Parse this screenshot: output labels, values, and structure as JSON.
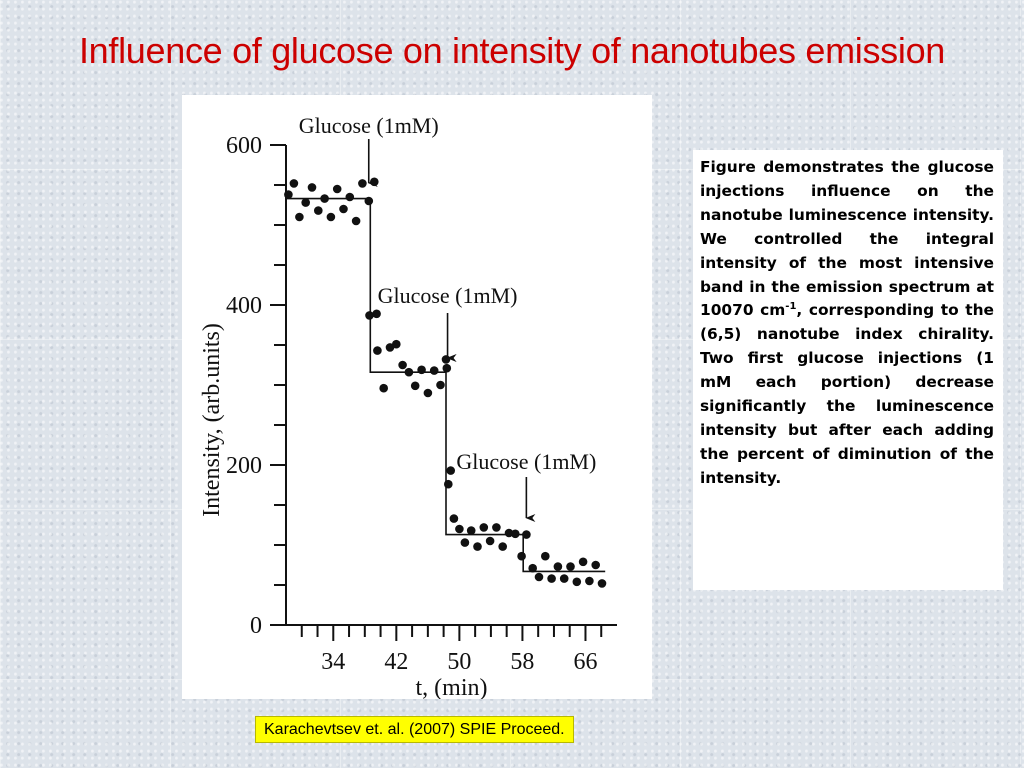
{
  "slide": {
    "title": "Influence of glucose on intensity of nanotubes emission"
  },
  "caption": {
    "before_superscript": "Figure demonstrates the glucose injections influence on the nanotube luminescence intensity. We controlled the integral intensity of the most intensive band in the emission spectrum at 10070 cm",
    "superscript": "-1",
    "after_superscript": ", corresponding to the (6,5) nanotube index chirality. Two first glucose injections (1 mM each portion) decrease significantly the luminescence intensity but after each adding the percent of diminution of the intensity."
  },
  "source": {
    "label": "Karachevtsev et. al. (2007) SPIE Proceed."
  },
  "colors": {
    "title": "#cc0000",
    "source_highlight": "#ffff00",
    "plot_ink": "#111111"
  },
  "chart_data": {
    "type": "scatter",
    "xlabel": "t, (min)",
    "ylabel": "Intensity, (arb.units)",
    "x_ticks": [
      34,
      42,
      50,
      58,
      66
    ],
    "y_ticks": [
      0,
      200,
      400,
      600
    ],
    "xlim": [
      28,
      70
    ],
    "ylim": [
      0,
      600
    ],
    "grid": false,
    "annotations": [
      {
        "text": "Glucose (1mM)",
        "x": 38.5
      },
      {
        "text": "Glucose (1mM)",
        "x": 48.5
      },
      {
        "text": "Glucose (1mM)",
        "x": 58.5
      }
    ],
    "series": [
      {
        "x": [
          28.3,
          29.0,
          29.7,
          30.5,
          31.3,
          32.1,
          32.9,
          33.7,
          34.5,
          35.3,
          36.1,
          36.9,
          37.7,
          38.5,
          39.2,
          38.6,
          39.5,
          39.6,
          40.4,
          41.2,
          42.0,
          42.8,
          43.6,
          44.4,
          45.2,
          46.0,
          46.8,
          47.6,
          48.4,
          48.3,
          48.6,
          48.9,
          49.3,
          50.0,
          50.7,
          51.5,
          52.3,
          53.1,
          53.9,
          54.7,
          55.5,
          56.3,
          57.1,
          57.9,
          58.5,
          59.3,
          60.1,
          60.9,
          61.7,
          62.5,
          63.3,
          64.1,
          64.9,
          65.7,
          66.5,
          67.3,
          68.1
        ],
        "y": [
          538,
          552,
          510,
          528,
          547,
          518,
          533,
          510,
          545,
          520,
          535,
          505,
          552,
          530,
          554,
          387,
          389,
          343,
          296,
          347,
          351,
          325,
          316,
          299,
          319,
          290,
          318,
          300,
          321,
          332,
          176,
          193,
          133,
          120,
          103,
          118,
          98,
          122,
          105,
          122,
          98,
          115,
          114,
          86,
          113,
          71,
          60,
          86,
          58,
          73,
          58,
          73,
          54,
          79,
          55,
          75,
          52
        ]
      }
    ],
    "fit_steps": [
      {
        "x_start": 28,
        "x_end": 38.7,
        "y": 533
      },
      {
        "x_start": 38.7,
        "x_end": 48.3,
        "y": 316
      },
      {
        "x_start": 48.3,
        "x_end": 58.1,
        "y": 113
      },
      {
        "x_start": 58.1,
        "x_end": 68.5,
        "y": 67
      }
    ]
  }
}
